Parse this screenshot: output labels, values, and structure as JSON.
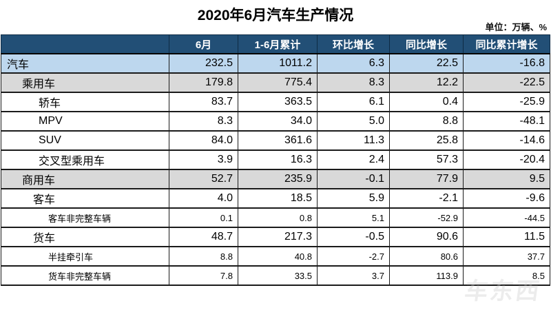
{
  "title": "2020年6月汽车生产情况",
  "unit_label": "单位：万辆、%",
  "watermark": {
    "text": "车东西"
  },
  "colors": {
    "header_bg": "#224F76",
    "header_text": "#ffffff",
    "total_row_bg": "#BDD7EE",
    "group_row_bg": "#D9D9D9",
    "grid_line": "#1a1a1a"
  },
  "chart_data": {
    "type": "table",
    "title": "2020年6月汽车生产情况",
    "unit": "万辆、%",
    "columns": [
      "",
      "6月",
      "1-6月累计",
      "环比增长",
      "同比增长",
      "同比累计增长"
    ],
    "rows": [
      {
        "label": "汽车",
        "indent": 0,
        "bg": "blue",
        "small": false,
        "values": [
          "232.5",
          "1011.2",
          "6.3",
          "22.5",
          "-16.8"
        ]
      },
      {
        "label": "乘用车",
        "indent": 1,
        "bg": "gray",
        "small": false,
        "values": [
          "179.8",
          "775.4",
          "8.3",
          "12.2",
          "-22.5"
        ]
      },
      {
        "label": "轿车",
        "indent": 3,
        "bg": "",
        "small": false,
        "values": [
          "83.7",
          "363.5",
          "6.1",
          "0.4",
          "-25.9"
        ]
      },
      {
        "label": "MPV",
        "indent": 3,
        "bg": "",
        "small": false,
        "values": [
          "8.3",
          "34.0",
          "5.0",
          "8.8",
          "-48.1"
        ]
      },
      {
        "label": "SUV",
        "indent": 3,
        "bg": "",
        "small": false,
        "values": [
          "84.0",
          "361.6",
          "11.3",
          "25.8",
          "-14.6"
        ]
      },
      {
        "label": "交叉型乘用车",
        "indent": 3,
        "bg": "",
        "small": false,
        "values": [
          "3.9",
          "16.3",
          "2.4",
          "57.3",
          "-20.4"
        ]
      },
      {
        "label": "商用车",
        "indent": 1,
        "bg": "gray",
        "small": false,
        "values": [
          "52.7",
          "235.9",
          "-0.1",
          "77.9",
          "9.5"
        ]
      },
      {
        "label": "客车",
        "indent": 2,
        "bg": "",
        "small": false,
        "values": [
          "4.0",
          "18.5",
          "5.9",
          "-2.1",
          "-9.6"
        ]
      },
      {
        "label": "客车非完整车辆",
        "indent": 4,
        "bg": "",
        "small": true,
        "values": [
          "0.1",
          "0.8",
          "5.1",
          "-52.9",
          "-44.5"
        ]
      },
      {
        "label": "货车",
        "indent": 2,
        "bg": "",
        "small": false,
        "values": [
          "48.7",
          "217.3",
          "-0.5",
          "90.6",
          "11.5"
        ]
      },
      {
        "label": "半挂牵引车",
        "indent": 4,
        "bg": "",
        "small": true,
        "values": [
          "8.8",
          "40.8",
          "-2.7",
          "80.6",
          "37.7"
        ]
      },
      {
        "label": "货车非完整车辆",
        "indent": 4,
        "bg": "",
        "small": true,
        "values": [
          "7.8",
          "33.5",
          "3.7",
          "113.9",
          "8.5"
        ]
      }
    ]
  }
}
